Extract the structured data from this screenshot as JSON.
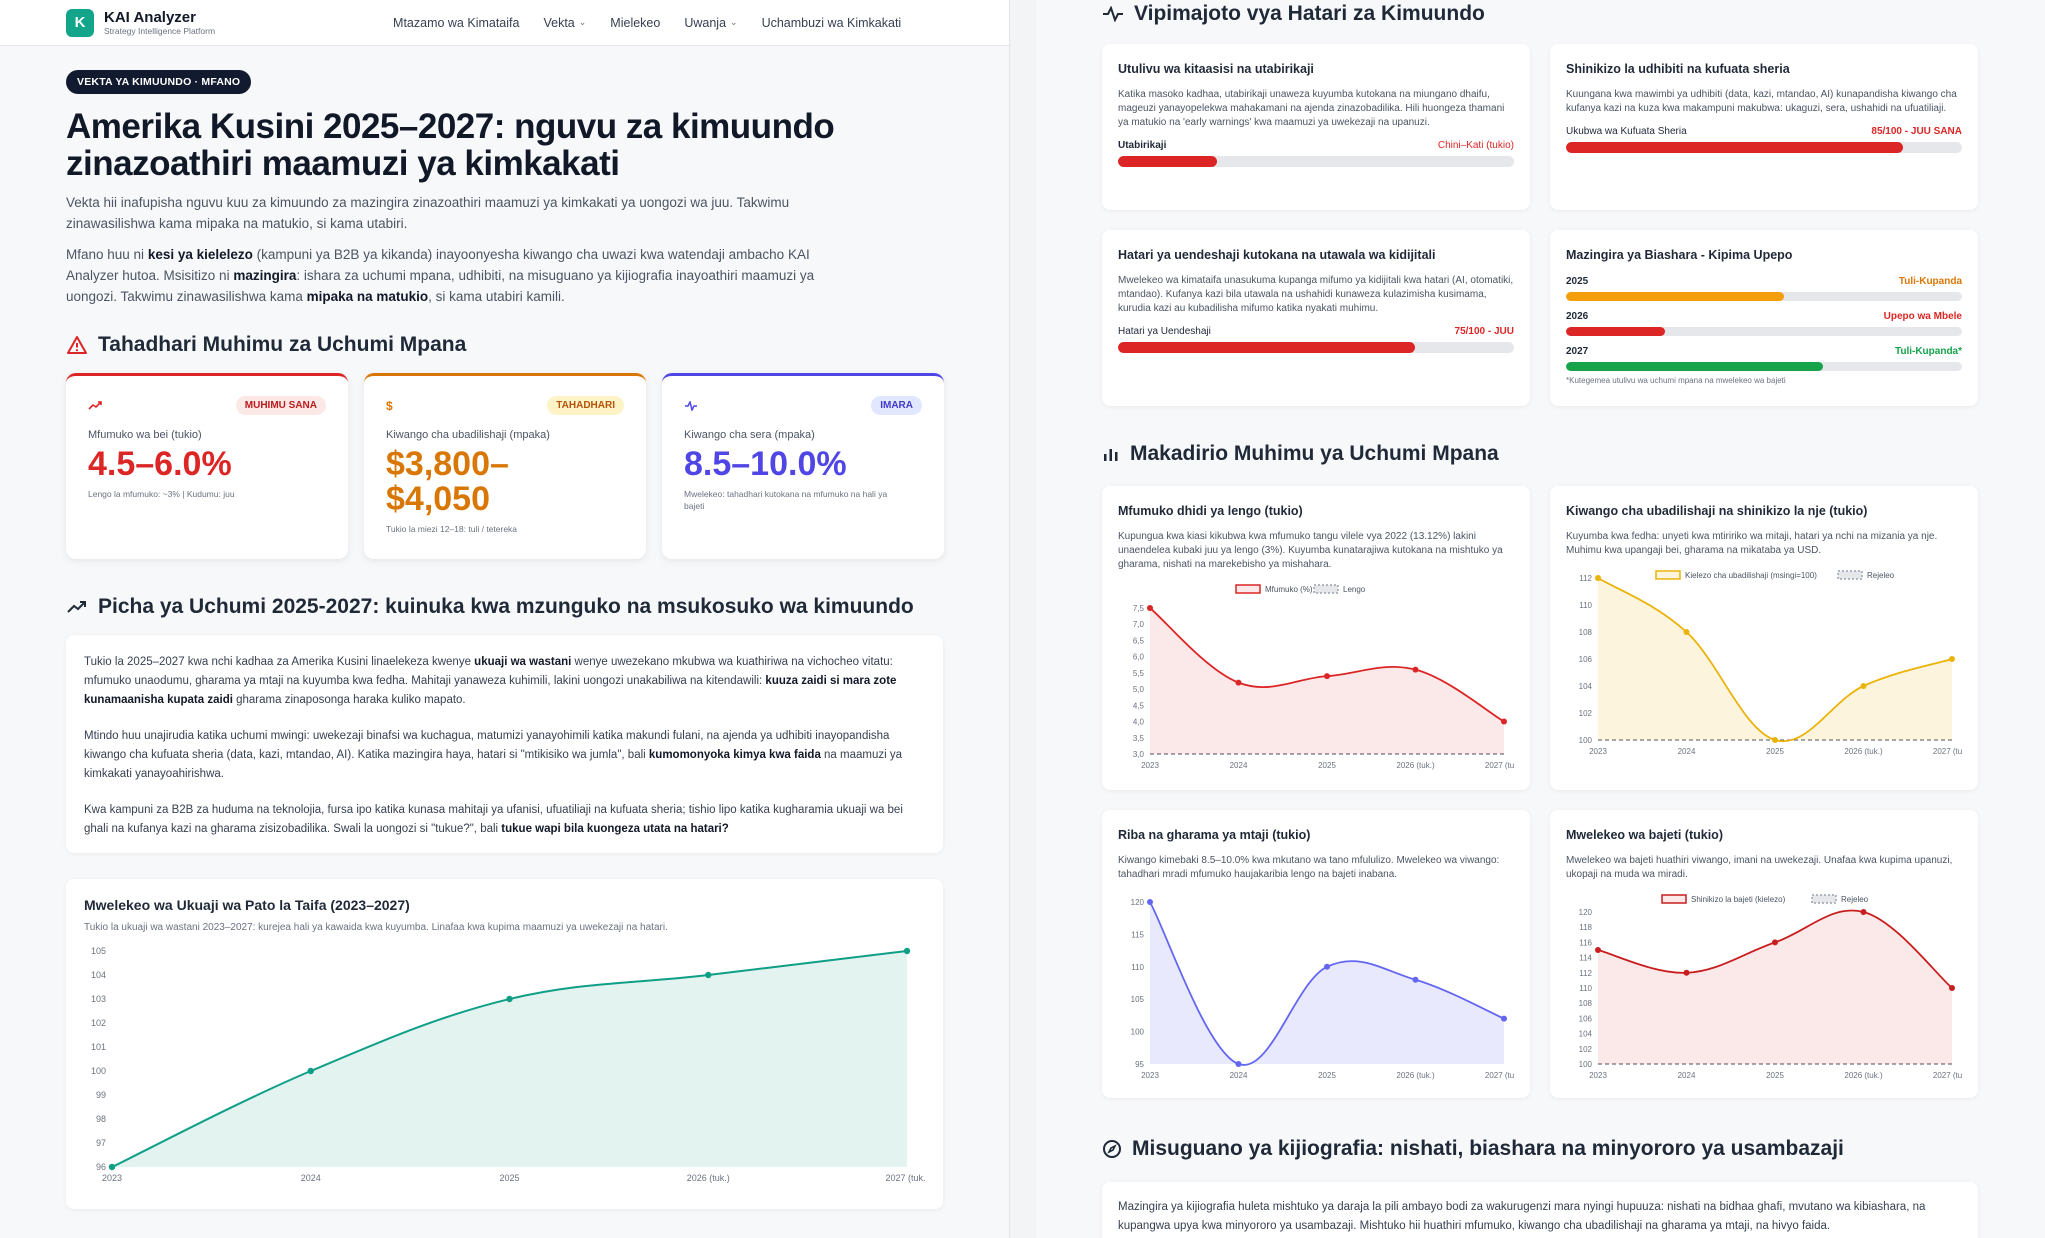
{
  "nav": {
    "logo_letter": "K",
    "brand": "KAI Analyzer",
    "brand_sub": "Strategy Intelligence Platform",
    "links": [
      "Mtazamo wa Kimataifa",
      "Vekta",
      "Mielekeo",
      "Uwanja",
      "Uchambuzi wa Kimkakati"
    ]
  },
  "hero": {
    "pill": "VEKTA YA KIMUUNDO · MFANO",
    "title": "Amerika Kusini 2025–2027: nguvu za kimuundo zinazoathiri maamuzi ya kimkakati",
    "lead1": "Vekta hii inafupisha nguvu kuu za kimuundo za mazingira zinazoathiri maamuzi ya kimkakati ya uongozi wa juu. Takwimu zinawasilishwa kama mipaka na matukio, si kama utabiri.",
    "lead2_a": "Mfano huu ni ",
    "lead2_b": "kesi ya kielelezo",
    "lead2_c": " (kampuni ya B2B ya kikanda) inayoonyesha kiwango cha uwazi kwa watendaji ambacho KAI Analyzer hutoa. Msisitizo ni ",
    "lead2_d": "mazingira",
    "lead2_e": ": ishara za uchumi mpana, udhibiti, na misuguano ya kijiografia inayoathiri maamuzi ya uongozi. Takwimu zinawasilishwa kama ",
    "lead2_f": "mipaka na matukio",
    "lead2_g": ", si kama utabiri kamili."
  },
  "alerts": {
    "title": "Tahadhari Muhimu za Uchumi Mpana",
    "cards": [
      {
        "badge": "MUHIMU SANA",
        "label": "Mfumuko wa bei (tukio)",
        "value": "4.5–6.0%",
        "note": "Lengo la mfumuko: ~3% | Kudumu: juu"
      },
      {
        "badge": "TAHADHARI",
        "label": "Kiwango cha ubadilishaji (mpaka)",
        "value": "$3,800–$4,050",
        "note": "Tukio la miezi 12–18: tuli / tetereka"
      },
      {
        "badge": "IMARA",
        "label": "Kiwango cha sera (mpaka)",
        "value": "8.5–10.0%",
        "note": "Mwelekeo: tahadhari kutokana na mfumuko na hali ya bajeti"
      }
    ]
  },
  "picture": {
    "title": "Picha ya Uchumi 2025-2027: kuinuka kwa mzunguko na msukosuko wa kimuundo",
    "p1": [
      {
        "t": "Tukio la 2025–2027 kwa nchi kadhaa za Amerika Kusini linaelekeza kwenye "
      },
      {
        "t": "ukuaji wa wastani",
        "b": true
      },
      {
        "t": " wenye uwezekano mkubwa wa kuathiriwa na vichocheo vitatu: mfumuko unaodumu, gharama ya mtaji na kuyumba kwa fedha. Mahitaji yanaweza kuhimili, lakini uongozi unakabiliwa na kitendawili: "
      },
      {
        "t": "kuuza zaidi si mara zote kunamaanisha kupata zaidi",
        "b": true
      },
      {
        "t": " gharama zinaposonga haraka kuliko mapato."
      }
    ],
    "p2": [
      {
        "t": "Mtindo huu unajirudia katika uchumi mwingi: uwekezaji binafsi wa kuchagua, matumizi yanayohimili katika makundi fulani, na ajenda ya udhibiti inayopandisha kiwango cha kufuata sheria (data, kazi, mtandao, AI). Katika mazingira haya, hatari si \"mtikisiko wa jumla\", bali "
      },
      {
        "t": "kumomonyoka kimya kwa faida",
        "b": true
      },
      {
        "t": " na maamuzi ya kimkakati yanayoahirishwa."
      }
    ],
    "p3": [
      {
        "t": "Kwa kampuni za B2B za huduma na teknolojia, fursa ipo katika kunasa mahitaji ya ufanisi, ufuatiliaji na kufuata sheria; tishio lipo katika kugharamia ukuaji wa bei ghali na kufanya kazi na gharama zisizobadilika. Swali la uongozi si \"tukue?\", bali "
      },
      {
        "t": "tukue wapi bila kuongeza utata na hatari?",
        "b": true
      }
    ]
  },
  "gdp_chart": {
    "title": "Mwelekeo wa Ukuaji wa Pato la Taifa (2023–2027)",
    "sub": "Tukio la ukuaji wa wastani 2023–2027: kurejea hali ya kawaida kwa kuyumba. Linafaa kwa kupima maamuzi ya uwekezaji na hatari."
  },
  "risk": {
    "title": "Vipimajoto vya Hatari za Kimuundo",
    "c1": {
      "title": "Utulivu wa kitaasisi na utabirikaji",
      "desc": "Katika masoko kadhaa, utabirikaji unaweza kuyumba kutokana na miungano dhaifu, mageuzi yanayopelekwa mahakamani na ajenda zinazobadilika. Hili huongeza thamani ya matukio na 'early warnings' kwa maamuzi ya uwekezaji na upanuzi.",
      "label": "Utabirikaji",
      "value": "Chini–Kati (tukio)",
      "level": 0.25
    },
    "c2": {
      "title": "Shinikizo la udhibiti na kufuata sheria",
      "desc": "Kuungana kwa mawimbi ya udhibiti (data, kazi, mtandao, AI) kunapandisha kiwango cha kufanya kazi na kuza kwa makampuni makubwa: ukaguzi, sera, ushahidi na ufuatiliaji.",
      "label": "Ukubwa wa Kufuata Sheria",
      "value": "85/100 - JUU SANA",
      "level": 0.85
    },
    "c3": {
      "title": "Hatari ya uendeshaji kutokana na utawala wa kidijitali",
      "desc": "Mwelekeo wa kimataifa unasukuma kupanga mifumo ya kidijitali kwa hatari (AI, otomatiki, mtandao). Kufanya kazi bila utawala na ushahidi kunaweza kulazimisha kusimama, kurudia kazi au kubadilisha mifumo katika nyakati muhimu.",
      "label": "Hatari ya Uendeshaji",
      "value": "75/100 - JUU",
      "level": 0.75
    },
    "c4": {
      "title": "Mazingira ya Biashara - Kipima Upepo",
      "rows": [
        {
          "year": "2025",
          "state": "Tuli-Kupanda",
          "level": 0.55,
          "color": "#f59e0b"
        },
        {
          "year": "2026",
          "state": "Upepo wa Mbele",
          "level": 0.25,
          "color": "#dc2626"
        },
        {
          "year": "2027",
          "state": "Tuli-Kupanda*",
          "level": 0.65,
          "color": "#16a34a"
        }
      ],
      "note": "*Kutegemea utulivu wa uchumi mpana na mwelekeo wa bajeti"
    }
  },
  "macro": {
    "title": "Makadirio Muhimu ya Uchumi Mpana",
    "c1": {
      "title": "Mfumuko dhidi ya lengo (tukio)",
      "desc": "Kupungua kwa kiasi kikubwa kwa mfumuko tangu vilele vya 2022 (13.12%) lakini unaendelea kubaki juu ya lengo (3%). Kuyumba kunatarajiwa kutokana na mishtuko ya gharama, nishati na marekebisho ya mishahara."
    },
    "c2": {
      "title": "Kiwango cha ubadilishaji na shinikizo la nje (tukio)",
      "desc": "Kuyumba kwa fedha: unyeti kwa mtiririko wa mitaji, hatari ya nchi na mizania ya nje. Muhimu kwa upangaji bei, gharama na mikataba ya USD."
    },
    "c3": {
      "title": "Riba na gharama ya mtaji (tukio)",
      "desc": "Kiwango kimebaki 8.5–10.0% kwa mkutano wa tano mfululizo. Mwelekeo wa viwango: tahadhari mradi mfumuko haujakaribia lengo na bajeti inabana."
    },
    "c4": {
      "title": "Mwelekeo wa bajeti (tukio)",
      "desc": "Mwelekeo wa bajeti huathiri viwango, imani na uwekezaji. Unafaa kwa kupima upanuzi, ukopaji na muda wa miradi."
    }
  },
  "geo": {
    "title": "Misuguano ya kijiografia: nishati, biashara na minyororo ya usambazaji",
    "text": "Mazingira ya kijiografia huleta mishtuko ya daraja la pili ambayo bodi za wakurugenzi mara nyingi hupuuza: nishati na bidhaa ghafi, mvutano wa kibiashara, na kupangwa upya kwa minyororo ya usambazaji. Mishtuko hii huathiri mfumuko, kiwango cha ubadilishaji na gharama ya mtaji, na hivyo faida."
  },
  "colors": {
    "red": "#dc2626",
    "orange": "#d97706",
    "purple": "#4f46e5",
    "teal": "#0f9f86",
    "yellow": "#eab308",
    "indigo": "#6366f1"
  },
  "chart_data": [
    {
      "type": "area",
      "title": "Mwelekeo wa Ukuaji wa Pato la Taifa (2023–2027)",
      "x": [
        "2023",
        "2024",
        "2025",
        "2026 (tuk.)",
        "2027 (tuk.)"
      ],
      "series": [
        {
          "values": [
            96,
            100,
            103,
            104,
            105
          ]
        }
      ],
      "ylim": [
        96,
        105
      ],
      "yticks": [
        96,
        97,
        98,
        99,
        100,
        101,
        102,
        103,
        104,
        105
      ]
    },
    {
      "type": "area",
      "title": "Mfumuko dhidi ya lengo (tukio)",
      "x": [
        "2023",
        "2024",
        "2025",
        "2026 (tuk.)",
        "2027 (tuk.)"
      ],
      "series": [
        {
          "name": "Mfumuko (%)",
          "values": [
            7.5,
            5.2,
            5.4,
            5.6,
            4.0
          ]
        },
        {
          "name": "Lengo",
          "values": [
            3.0,
            3.0,
            3.0,
            3.0,
            3.0
          ]
        }
      ],
      "ylim": [
        3.0,
        7.5
      ],
      "yticks": [
        "3,0",
        "3,5",
        "4,0",
        "4,5",
        "5,0",
        "5,5",
        "6,0",
        "6,5",
        "7,0",
        "7,5"
      ]
    },
    {
      "type": "area",
      "title": "Kiwango cha ubadilishaji na shinikizo la nje (tukio)",
      "x": [
        "2023",
        "2024",
        "2025",
        "2026 (tuk.)",
        "2027 (tuk.)"
      ],
      "series": [
        {
          "name": "Kielezo cha ubadilishaji (msingi=100)",
          "values": [
            112,
            108,
            100,
            104,
            106
          ]
        },
        {
          "name": "Rejeleo",
          "values": [
            100,
            100,
            100,
            100,
            100
          ]
        }
      ],
      "ylim": [
        100,
        112
      ],
      "yticks": [
        100,
        102,
        104,
        106,
        108,
        110,
        112
      ]
    },
    {
      "type": "area",
      "title": "Riba na gharama ya mtaji (tukio)",
      "x": [
        "2023",
        "2024",
        "2025",
        "2026 (tuk.)",
        "2027 (tuk.)"
      ],
      "series": [
        {
          "values": [
            120,
            95,
            110,
            108,
            102
          ]
        }
      ],
      "ylim": [
        95,
        120
      ],
      "yticks": [
        95,
        100,
        105,
        110,
        115,
        120
      ]
    },
    {
      "type": "area",
      "title": "Mwelekeo wa bajeti (tukio)",
      "x": [
        "2023",
        "2024",
        "2025",
        "2026 (tuk.)",
        "2027 (tuk.)"
      ],
      "series": [
        {
          "name": "Shinikizo la bajeti (kielezo)",
          "values": [
            115,
            112,
            116,
            120,
            110
          ]
        },
        {
          "name": "Rejeleo",
          "values": [
            100,
            100,
            100,
            100,
            100
          ]
        }
      ],
      "ylim": [
        100,
        120
      ],
      "yticks": [
        100,
        102,
        104,
        106,
        108,
        110,
        112,
        114,
        116,
        118,
        120
      ]
    }
  ]
}
